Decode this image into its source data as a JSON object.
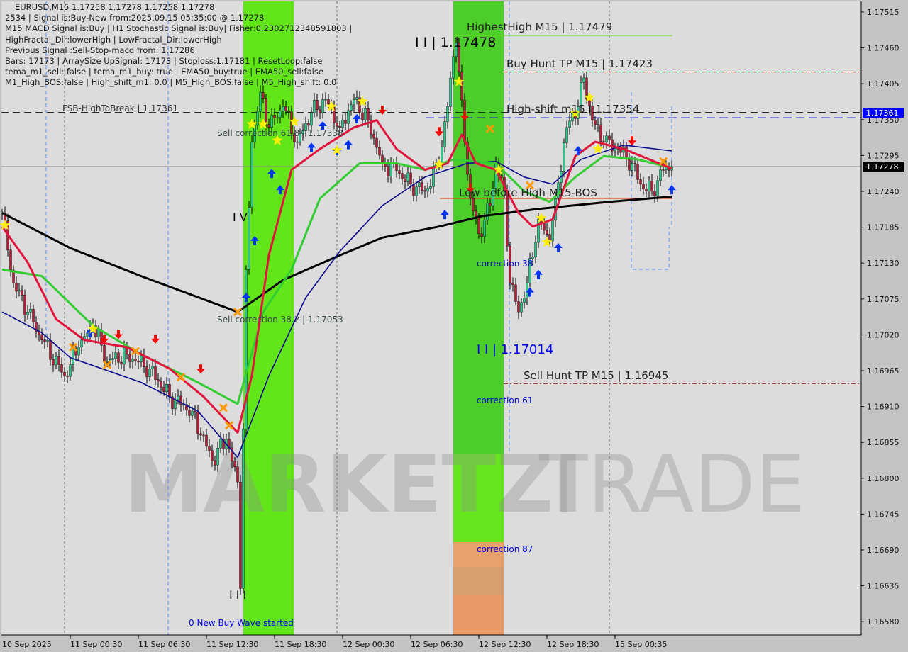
{
  "header": {
    "symbol_line": "EURUSD,M15  1.17258 1.17278 1.17258 1.17278",
    "lines": [
      "2534 | Signal is:Buy-New from:2025.09.15 05:35:00 @ 1.17278",
      "M15 MACD Signal is:Buy | H1 Stochastic Signal is:Buy| Fisher:0.2302712348591803 | HighFractal_Dir:lowerHigh | LowFractal_Dir:lowerHigh",
      "Previous Signal :Sell-Stop-macd from: 1.17286",
      "Bars: 17173 | ArraySize UpSignal: 17173 | Stoploss:1.17181 | ResetLoop:false",
      "tema_m1_sell: false | tema_m1_buy: true | EMA50_buy:true | EMA50_sell:false",
      "M1_High_BOS:false | High_shift_m1: 0.0 | M5_High_BOS:false | M5_High_shift: 0.0"
    ]
  },
  "watermark": {
    "part1": "MARKETZI",
    "part2": "TRADE"
  },
  "colors": {
    "background": "#dcdcdc",
    "axis_background": "#c4c4c4",
    "bull_candle": "#2fc48a",
    "bear_candle": "#b0203a",
    "wick": "#000000",
    "ema_black": "#000000",
    "ema_blue": "#0a0a8c",
    "ema_green": "#33cc33",
    "ema_red": "#e0143c",
    "buy_arrow": "#0033ff",
    "sell_arrow": "#ff0000",
    "star": "#ffee00",
    "cross": "#ff9900",
    "zone_green": "#62e61a",
    "zone_green_dark": "#4ccd2a",
    "zone_orange": "#e89a68",
    "current_price_badge": "#000000",
    "fsb_badge": "#0000ff"
  },
  "chart_data": {
    "type": "candlestick",
    "symbol": "EURUSD",
    "timeframe": "M15",
    "ylim": [
      1.1655,
      1.1754
    ],
    "grid": false,
    "y_ticks": [
      "1.17515",
      "1.17460",
      "1.17405",
      "1.17350",
      "1.17295",
      "1.17240",
      "1.17185",
      "1.17130",
      "1.17075",
      "1.17020",
      "1.16965",
      "1.16910",
      "1.16855",
      "1.16800",
      "1.16745",
      "1.16690",
      "1.16635",
      "1.16580"
    ],
    "x_ticks": [
      "10 Sep 2025",
      "11 Sep 00:30",
      "11 Sep 06:30",
      "11 Sep 12:30",
      "11 Sep 18:30",
      "12 Sep 00:30",
      "12 Sep 06:30",
      "12 Sep 12:30",
      "12 Sep 18:30",
      "15 Sep 00:35"
    ],
    "current_price": "1.17278",
    "fsb_price": "1.17361",
    "price_path": [
      [
        "2025-09-10 18:30",
        1.17207
      ],
      [
        "2025-09-10 19:30",
        1.17099
      ],
      [
        "2025-09-10 20:45",
        1.17055
      ],
      [
        "2025-09-10 22:00",
        1.17012
      ],
      [
        "2025-09-11 00:00",
        1.16957
      ],
      [
        "2025-09-11 01:15",
        1.17001
      ],
      [
        "2025-09-11 02:30",
        1.17034
      ],
      [
        "2025-09-11 03:45",
        1.16979
      ],
      [
        "2025-09-11 05:30",
        1.1699
      ],
      [
        "2025-09-11 07:30",
        1.16968
      ],
      [
        "2025-09-11 09:15",
        1.16925
      ],
      [
        "2025-09-11 11:15",
        1.16903
      ],
      [
        "2025-09-11 13:00",
        1.16827
      ],
      [
        "2025-09-11 14:15",
        1.1686
      ],
      [
        "2025-09-11 15:15",
        1.16794
      ],
      [
        "2025-09-11 15:30",
        1.16631
      ],
      [
        "2025-09-11 16:00",
        1.1712
      ],
      [
        "2025-09-11 16:30",
        1.17316
      ],
      [
        "2025-09-11 17:15",
        1.17392
      ],
      [
        "2025-09-11 18:00",
        1.17338
      ],
      [
        "2025-09-11 19:15",
        1.1737
      ],
      [
        "2025-09-11 20:30",
        1.17316
      ],
      [
        "2025-09-11 21:45",
        1.1736
      ],
      [
        "2025-09-11 23:00",
        1.17381
      ],
      [
        "2025-09-12 00:15",
        1.17338
      ],
      [
        "2025-09-12 01:30",
        1.17381
      ],
      [
        "2025-09-12 02:45",
        1.17349
      ],
      [
        "2025-09-12 04:00",
        1.17283
      ],
      [
        "2025-09-12 05:15",
        1.17272
      ],
      [
        "2025-09-12 06:30",
        1.17251
      ],
      [
        "2025-09-12 07:45",
        1.1724
      ],
      [
        "2025-09-12 09:00",
        1.17283
      ],
      [
        "2025-09-12 09:45",
        1.1737
      ],
      [
        "2025-09-12 10:15",
        1.17447
      ],
      [
        "2025-09-12 10:30",
        1.17468
      ],
      [
        "2025-09-12 11:15",
        1.17316
      ],
      [
        "2025-09-12 11:45",
        1.17229
      ],
      [
        "2025-09-12 12:30",
        1.17175
      ],
      [
        "2025-09-12 13:30",
        1.17218
      ],
      [
        "2025-09-12 14:00",
        1.17283
      ],
      [
        "2025-09-12 14:45",
        1.1724
      ],
      [
        "2025-09-12 15:15",
        1.17099
      ],
      [
        "2025-09-12 16:00",
        1.17055
      ],
      [
        "2025-09-12 16:45",
        1.17099
      ],
      [
        "2025-09-12 17:45",
        1.17197
      ],
      [
        "2025-09-12 18:45",
        1.17164
      ],
      [
        "2025-09-12 19:15",
        1.17229
      ],
      [
        "2025-09-12 20:15",
        1.17338
      ],
      [
        "2025-09-12 21:15",
        1.1737
      ],
      [
        "2025-09-12 21:45",
        1.17414
      ],
      [
        "2025-09-12 22:30",
        1.17349
      ],
      [
        "2025-09-12 23:30",
        1.17316
      ],
      [
        "2025-09-15 00:45",
        1.17305
      ],
      [
        "2025-09-15 02:00",
        1.17283
      ],
      [
        "2025-09-15 02:45",
        1.17251
      ],
      [
        "2025-09-15 03:45",
        1.1724
      ],
      [
        "2025-09-15 04:45",
        1.17273
      ],
      [
        "2025-09-15 05:30",
        1.17278
      ]
    ],
    "series": [
      {
        "color_key": "ema_black",
        "width": 3,
        "points": [
          [
            "2025-09-10 18:30",
            1.17207
          ],
          [
            "2025-09-11 00:30",
            1.17153
          ],
          [
            "2025-09-11 06:45",
            1.1711
          ],
          [
            "2025-09-11 15:15",
            1.17055
          ],
          [
            "2025-09-11 19:15",
            1.17104
          ],
          [
            "2025-09-12 00:15",
            1.17142
          ],
          [
            "2025-09-12 04:00",
            1.17169
          ],
          [
            "2025-09-12 09:00",
            1.17186
          ],
          [
            "2025-09-12 12:45",
            1.17202
          ],
          [
            "2025-09-12 17:45",
            1.17213
          ],
          [
            "2025-09-15 00:00",
            1.17224
          ],
          [
            "2025-09-15 05:30",
            1.17232
          ]
        ]
      },
      {
        "color_key": "ema_blue",
        "width": 1.6,
        "points": [
          [
            "2025-09-10 18:30",
            1.17055
          ],
          [
            "2025-09-10 22:00",
            1.17023
          ],
          [
            "2025-09-11 00:30",
            1.16985
          ],
          [
            "2025-09-11 06:45",
            1.16947
          ],
          [
            "2025-09-11 11:45",
            1.16903
          ],
          [
            "2025-09-11 15:15",
            1.16832
          ],
          [
            "2025-09-11 18:00",
            1.16957
          ],
          [
            "2025-09-11 21:15",
            1.17077
          ],
          [
            "2025-09-12 00:15",
            1.17148
          ],
          [
            "2025-09-12 04:00",
            1.17218
          ],
          [
            "2025-09-12 07:45",
            1.17262
          ],
          [
            "2025-09-12 11:30",
            1.17283
          ],
          [
            "2025-09-12 14:00",
            1.17286
          ],
          [
            "2025-09-12 16:30",
            1.17262
          ],
          [
            "2025-09-12 19:00",
            1.17251
          ],
          [
            "2025-09-12 21:30",
            1.17289
          ],
          [
            "2025-09-15 01:15",
            1.17311
          ],
          [
            "2025-09-15 05:30",
            1.17302
          ]
        ]
      },
      {
        "color_key": "ema_green",
        "width": 3,
        "points": [
          [
            "2025-09-10 18:30",
            1.1712
          ],
          [
            "2025-09-10 22:00",
            1.1711
          ],
          [
            "2025-09-11 02:30",
            1.17034
          ],
          [
            "2025-09-11 06:45",
            1.1699
          ],
          [
            "2025-09-11 11:45",
            1.16947
          ],
          [
            "2025-09-11 15:15",
            1.16914
          ],
          [
            "2025-09-11 17:30",
            1.17055
          ],
          [
            "2025-09-11 20:00",
            1.1712
          ],
          [
            "2025-09-11 22:30",
            1.17229
          ],
          [
            "2025-09-12 02:00",
            1.17283
          ],
          [
            "2025-09-12 05:15",
            1.17283
          ],
          [
            "2025-09-12 07:45",
            1.17273
          ],
          [
            "2025-09-12 10:15",
            1.17289
          ],
          [
            "2025-09-12 14:00",
            1.17283
          ],
          [
            "2025-09-12 16:30",
            1.1724
          ],
          [
            "2025-09-12 18:45",
            1.17224
          ],
          [
            "2025-09-12 21:00",
            1.17262
          ],
          [
            "2025-09-12 23:30",
            1.17294
          ],
          [
            "2025-09-15 02:30",
            1.17289
          ],
          [
            "2025-09-15 05:30",
            1.17276
          ]
        ]
      },
      {
        "color_key": "ema_red",
        "width": 3,
        "points": [
          [
            "2025-09-10 18:30",
            1.17186
          ],
          [
            "2025-09-10 20:45",
            1.17131
          ],
          [
            "2025-09-10 23:15",
            1.17044
          ],
          [
            "2025-09-11 01:45",
            1.17012
          ],
          [
            "2025-09-11 05:30",
            1.17001
          ],
          [
            "2025-09-11 09:15",
            1.16968
          ],
          [
            "2025-09-11 12:15",
            1.16925
          ],
          [
            "2025-09-11 15:15",
            1.1687
          ],
          [
            "2025-09-11 16:30",
            1.16957
          ],
          [
            "2025-09-11 18:00",
            1.17142
          ],
          [
            "2025-09-11 20:00",
            1.17273
          ],
          [
            "2025-09-11 22:30",
            1.17305
          ],
          [
            "2025-09-12 01:30",
            1.17338
          ],
          [
            "2025-09-12 03:30",
            1.17349
          ],
          [
            "2025-09-12 05:15",
            1.17305
          ],
          [
            "2025-09-12 07:45",
            1.17273
          ],
          [
            "2025-09-12 09:45",
            1.17283
          ],
          [
            "2025-09-12 11:00",
            1.17327
          ],
          [
            "2025-09-12 12:15",
            1.17283
          ],
          [
            "2025-09-12 14:00",
            1.17273
          ],
          [
            "2025-09-12 16:00",
            1.17207
          ],
          [
            "2025-09-12 17:15",
            1.17186
          ],
          [
            "2025-09-12 19:00",
            1.17197
          ],
          [
            "2025-09-12 21:00",
            1.17294
          ],
          [
            "2025-09-12 22:45",
            1.17316
          ],
          [
            "2025-09-15 01:15",
            1.17305
          ],
          [
            "2025-09-15 05:30",
            1.17275
          ]
        ]
      }
    ],
    "markers": {
      "buy": [
        [
          "2025-09-11 02:15",
          1.17023
        ],
        [
          "2025-09-11 16:00",
          1.17077
        ],
        [
          "2025-09-11 16:45",
          1.17164
        ],
        [
          "2025-09-11 18:15",
          1.17267
        ],
        [
          "2025-09-11 19:00",
          1.17242
        ],
        [
          "2025-09-11 21:45",
          1.17307
        ],
        [
          "2025-09-11 22:45",
          1.1734
        ],
        [
          "2025-09-12 00:00",
          1.17302
        ],
        [
          "2025-09-12 01:00",
          1.17311
        ],
        [
          "2025-09-12 01:45",
          1.17351
        ],
        [
          "2025-09-12 09:30",
          1.17204
        ],
        [
          "2025-09-12 17:00",
          1.17085
        ],
        [
          "2025-09-12 17:45",
          1.17112
        ],
        [
          "2025-09-12 19:30",
          1.17153
        ],
        [
          "2025-09-12 21:15",
          1.17302
        ],
        [
          "2025-09-15 05:30",
          1.17242
        ]
      ],
      "sell": [
        [
          "2025-09-11 03:30",
          1.17014
        ],
        [
          "2025-09-11 04:45",
          1.17021
        ],
        [
          "2025-09-11 08:00",
          1.17014
        ],
        [
          "2025-09-11 12:00",
          1.16968
        ],
        [
          "2025-09-12 04:00",
          1.17365
        ],
        [
          "2025-09-12 09:00",
          1.17332
        ],
        [
          "2025-09-12 11:15",
          1.17356
        ],
        [
          "2025-09-12 11:45",
          1.17245
        ],
        [
          "2025-09-15 02:00",
          1.17318
        ]
      ],
      "star": [
        [
          "2025-09-10 18:45",
          1.17188
        ],
        [
          "2025-09-11 02:30",
          1.17029
        ],
        [
          "2025-09-11 16:30",
          1.17343
        ],
        [
          "2025-09-11 17:30",
          1.17343
        ],
        [
          "2025-09-11 18:45",
          1.17318
        ],
        [
          "2025-09-11 20:15",
          1.17347
        ],
        [
          "2025-09-11 23:30",
          1.1737
        ],
        [
          "2025-09-12 00:00",
          1.17303
        ],
        [
          "2025-09-12 02:15",
          1.17378
        ],
        [
          "2025-09-12 09:00",
          1.17281
        ],
        [
          "2025-09-12 10:45",
          1.17408
        ],
        [
          "2025-09-12 14:15",
          1.17273
        ],
        [
          "2025-09-12 18:00",
          1.17199
        ],
        [
          "2025-09-12 18:30",
          1.17162
        ],
        [
          "2025-09-12 21:00",
          1.1736
        ],
        [
          "2025-09-12 22:15",
          1.17384
        ],
        [
          "2025-09-12 23:00",
          1.17305
        ]
      ],
      "cross": [
        [
          "2025-09-11 00:45",
          1.17001
        ],
        [
          "2025-09-11 03:45",
          1.16974
        ],
        [
          "2025-09-11 06:15",
          1.16995
        ],
        [
          "2025-09-11 10:15",
          1.16955
        ],
        [
          "2025-09-11 14:00",
          1.16908
        ],
        [
          "2025-09-11 14:30",
          1.16881
        ],
        [
          "2025-09-11 15:15",
          1.17055
        ],
        [
          "2025-09-12 13:30",
          1.17336
        ],
        [
          "2025-09-12 17:00",
          1.17249
        ],
        [
          "2025-09-15 04:45",
          1.17286
        ]
      ]
    },
    "levels": {
      "fsb_high_to_break": 1.17361,
      "high_shift": 1.17354,
      "highest_high": 1.17479,
      "buy_hunt_tp": 1.17423,
      "sell_hunt_tp": 1.16945,
      "low_before_high": 1.17229,
      "current": 1.17278
    },
    "annotations": {
      "fsb": "FSB-HighToBreak | 1.17361",
      "sell_corr_618": "Sell correction 61.8 | 1.17338",
      "sell_corr_382": "Sell correction 38.2 | 1.17053",
      "wave_iv": "I V",
      "wave_iii": "I I I",
      "new_buy_wave": "0 New Buy Wave started",
      "high_ii": "I I | 1.17478",
      "highest_high": "HighestHigh M15 | 1.17479",
      "buy_hunt": "Buy Hunt TP M15 | 1.17423",
      "high_shift": "High-shift m15 | 1.17354",
      "low_before_high": "Low before High   M15-BOS",
      "correction_38": "correction 38",
      "low_ii": "I I | 1.17014",
      "sell_hunt": "Sell Hunt TP M15 | 1.16945",
      "correction_61": "correction 61",
      "correction_87": "correction 87"
    }
  }
}
